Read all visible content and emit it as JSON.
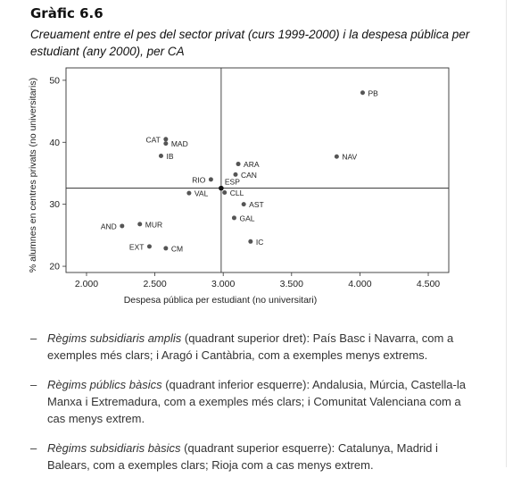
{
  "header": {
    "title": "Gràfic 6.6",
    "subtitle": "Creuament entre el pes del sector privat (curs 1999-2000) i la despesa pública per estudiant (any 2000), per CA"
  },
  "chart_data": {
    "type": "scatter",
    "xlabel": "Despesa pública per estudiant (no universitari)",
    "ylabel": "% alumnes en centres privats (no universitaris)",
    "xlim": [
      1850,
      4650
    ],
    "ylim": [
      19,
      52
    ],
    "xticks": [
      2000,
      2500,
      3000,
      3500,
      4000,
      4500
    ],
    "xtick_labels": [
      "2.000",
      "2.500",
      "3.000",
      "3.500",
      "4.000",
      "4.500"
    ],
    "yticks": [
      20,
      30,
      40,
      50
    ],
    "ytick_labels": [
      "20",
      "30",
      "40",
      "50"
    ],
    "reference_lines": {
      "x": 2985,
      "y": 32.6
    },
    "grid": false,
    "marker_color": "#555555",
    "points": [
      {
        "label": "PB",
        "x": 4020,
        "y": 48.0,
        "label_pos": "right"
      },
      {
        "label": "CAT",
        "x": 2580,
        "y": 40.5,
        "label_pos": "left"
      },
      {
        "label": "MAD",
        "x": 2580,
        "y": 39.8,
        "label_pos": "right"
      },
      {
        "label": "IB",
        "x": 2545,
        "y": 37.8,
        "label_pos": "right"
      },
      {
        "label": "NAV",
        "x": 3830,
        "y": 37.7,
        "label_pos": "right"
      },
      {
        "label": "ARA",
        "x": 3110,
        "y": 36.5,
        "label_pos": "right"
      },
      {
        "label": "CAN",
        "x": 3090,
        "y": 34.8,
        "label_pos": "right"
      },
      {
        "label": "RIO",
        "x": 2910,
        "y": 34.0,
        "label_pos": "left"
      },
      {
        "label": "ESP",
        "x": 2985,
        "y": 32.6,
        "label_pos": "above-right"
      },
      {
        "label": "CLL",
        "x": 3010,
        "y": 31.9,
        "label_pos": "right"
      },
      {
        "label": "VAL",
        "x": 2750,
        "y": 31.8,
        "label_pos": "right"
      },
      {
        "label": "AST",
        "x": 3150,
        "y": 30.0,
        "label_pos": "right"
      },
      {
        "label": "GAL",
        "x": 3080,
        "y": 27.8,
        "label_pos": "right"
      },
      {
        "label": "AND",
        "x": 2260,
        "y": 26.5,
        "label_pos": "left"
      },
      {
        "label": "MUR",
        "x": 2390,
        "y": 26.8,
        "label_pos": "right"
      },
      {
        "label": "IC",
        "x": 3200,
        "y": 24.0,
        "label_pos": "right"
      },
      {
        "label": "EXT",
        "x": 2460,
        "y": 23.2,
        "label_pos": "left"
      },
      {
        "label": "CM",
        "x": 2580,
        "y": 22.9,
        "label_pos": "right"
      }
    ]
  },
  "notes": [
    {
      "emphasis": "Règims subsidiaris amplis",
      "text": " (quadrant superior dret): País Basc i Navarra, com a exemples més clars; i Aragó i Cantàbria, com a exemples menys extrems."
    },
    {
      "emphasis": "Règims públics bàsics",
      "text": " (quadrant inferior esquerre): Andalusia, Múrcia, Castella-la Manxa i Extremadura, com a exemples més clars; i Comunitat Valenciana com a cas menys extrem."
    },
    {
      "emphasis": "Règims subsidiaris bàsics",
      "text": " (quadrant superior esquerre): Catalunya, Madrid i Balears, com a exemples clars; Rioja com a cas menys extrem."
    }
  ],
  "note_dash": "–"
}
